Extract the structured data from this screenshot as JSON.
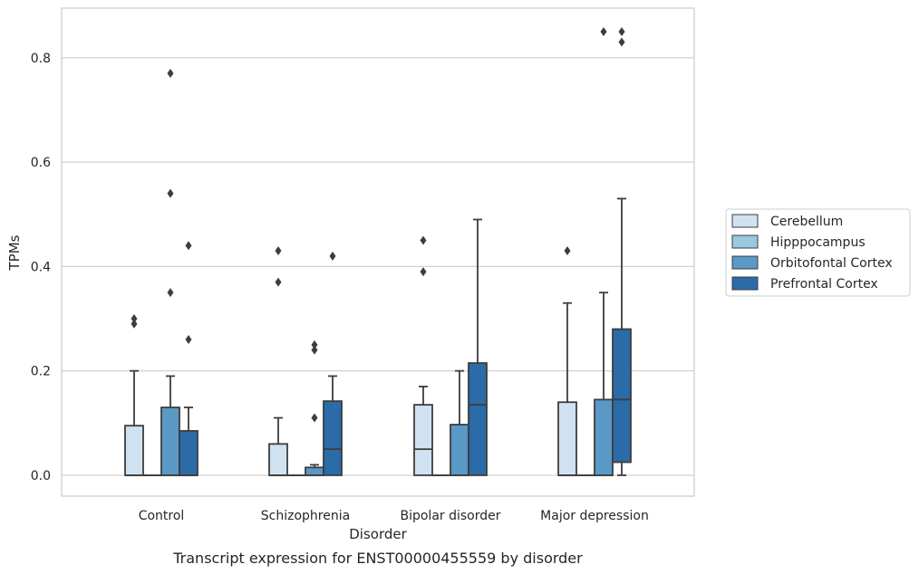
{
  "chart_data": {
    "type": "box",
    "xlabel": "Disorder",
    "ylabel": "TPMs",
    "caption": "Transcript expression for ENST00000455559 by disorder",
    "ylim": [
      -0.04,
      0.895
    ],
    "yticks": [
      0.0,
      0.2,
      0.4,
      0.6,
      0.8
    ],
    "ytick_labels": [
      "0.0",
      "0.2",
      "0.4",
      "0.6",
      "0.8"
    ],
    "grid": true,
    "legend_position": "right",
    "categories": [
      "Control",
      "Schizophrenia",
      "Bipolar disorder",
      "Major depression"
    ],
    "series": [
      {
        "name": "Cerebellum",
        "color": "#d0e1f2",
        "boxes": [
          {
            "whisker_low": 0.0,
            "q1": 0.0,
            "median": 0.0,
            "q3": 0.095,
            "whisker_high": 0.2,
            "outliers": [
              0.29,
              0.3
            ]
          },
          {
            "whisker_low": 0.0,
            "q1": 0.0,
            "median": 0.0,
            "q3": 0.06,
            "whisker_high": 0.11,
            "outliers": [
              0.37,
              0.43
            ]
          },
          {
            "whisker_low": 0.0,
            "q1": 0.0,
            "median": 0.05,
            "q3": 0.135,
            "whisker_high": 0.17,
            "outliers": [
              0.39,
              0.45
            ]
          },
          {
            "whisker_low": 0.0,
            "q1": 0.0,
            "median": 0.0,
            "q3": 0.14,
            "whisker_high": 0.33,
            "outliers": [
              0.43
            ]
          }
        ]
      },
      {
        "name": "Hipppocampus",
        "color": "#9ac8e0",
        "boxes": [
          {
            "whisker_low": 0.0,
            "q1": 0.0,
            "median": 0.0,
            "q3": 0.0,
            "whisker_high": 0.0,
            "outliers": []
          },
          {
            "whisker_low": 0.0,
            "q1": 0.0,
            "median": 0.0,
            "q3": 0.0,
            "whisker_high": 0.0,
            "outliers": []
          },
          {
            "whisker_low": 0.0,
            "q1": 0.0,
            "median": 0.0,
            "q3": 0.0,
            "whisker_high": 0.0,
            "outliers": []
          },
          {
            "whisker_low": 0.0,
            "q1": 0.0,
            "median": 0.0,
            "q3": 0.0,
            "whisker_high": 0.0,
            "outliers": []
          }
        ]
      },
      {
        "name": "Orbitofontal Cortex",
        "color": "#5a98c6",
        "boxes": [
          {
            "whisker_low": 0.0,
            "q1": 0.0,
            "median": 0.0,
            "q3": 0.13,
            "whisker_high": 0.19,
            "outliers": [
              0.35,
              0.54,
              0.77
            ]
          },
          {
            "whisker_low": 0.0,
            "q1": 0.0,
            "median": 0.0,
            "q3": 0.015,
            "whisker_high": 0.02,
            "outliers": [
              0.11,
              0.24,
              0.25
            ]
          },
          {
            "whisker_low": 0.0,
            "q1": 0.0,
            "median": 0.0,
            "q3": 0.097,
            "whisker_high": 0.2,
            "outliers": []
          },
          {
            "whisker_low": 0.0,
            "q1": 0.0,
            "median": 0.0,
            "q3": 0.145,
            "whisker_high": 0.35,
            "outliers": [
              0.85
            ]
          }
        ]
      },
      {
        "name": "Prefrontal Cortex",
        "color": "#2b6ba8",
        "boxes": [
          {
            "whisker_low": 0.0,
            "q1": 0.0,
            "median": 0.0,
            "q3": 0.085,
            "whisker_high": 0.13,
            "outliers": [
              0.26,
              0.44
            ]
          },
          {
            "whisker_low": 0.0,
            "q1": 0.0,
            "median": 0.05,
            "q3": 0.142,
            "whisker_high": 0.19,
            "outliers": [
              0.42
            ]
          },
          {
            "whisker_low": 0.0,
            "q1": 0.0,
            "median": 0.135,
            "q3": 0.215,
            "whisker_high": 0.49,
            "outliers": []
          },
          {
            "whisker_low": 0.0,
            "q1": 0.025,
            "median": 0.145,
            "q3": 0.28,
            "whisker_high": 0.53,
            "outliers": [
              0.83,
              0.85
            ]
          }
        ]
      }
    ]
  }
}
